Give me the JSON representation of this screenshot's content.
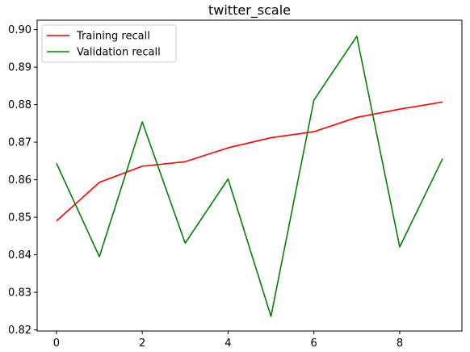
{
  "chart_data": {
    "type": "line",
    "title": "twitter_scale",
    "xlabel": "",
    "ylabel": "",
    "x": [
      0,
      1,
      2,
      3,
      4,
      5,
      6,
      7,
      8,
      9
    ],
    "xlim": [
      -0.45,
      9.45
    ],
    "ylim": [
      0.8197,
      0.9025
    ],
    "xticks": [
      0,
      2,
      4,
      6,
      8
    ],
    "yticks": [
      0.82,
      0.83,
      0.84,
      0.85,
      0.86,
      0.87,
      0.88,
      0.89,
      0.9
    ],
    "ytick_labels": [
      "0.82",
      "0.83",
      "0.84",
      "0.85",
      "0.86",
      "0.87",
      "0.88",
      "0.89",
      "0.90"
    ],
    "grid": false,
    "legend_position": "top-left",
    "series": [
      {
        "name": "Training recall",
        "color": "#ff0000",
        "values": [
          0.849,
          0.8593,
          0.8636,
          0.8648,
          0.8685,
          0.8712,
          0.8728,
          0.8766,
          0.8788,
          0.8807
        ]
      },
      {
        "name": "Validation recall",
        "color": "#008000",
        "values": [
          0.8644,
          0.8395,
          0.8754,
          0.8431,
          0.8602,
          0.8236,
          0.8812,
          0.8982,
          0.8421,
          0.8656
        ]
      }
    ]
  }
}
